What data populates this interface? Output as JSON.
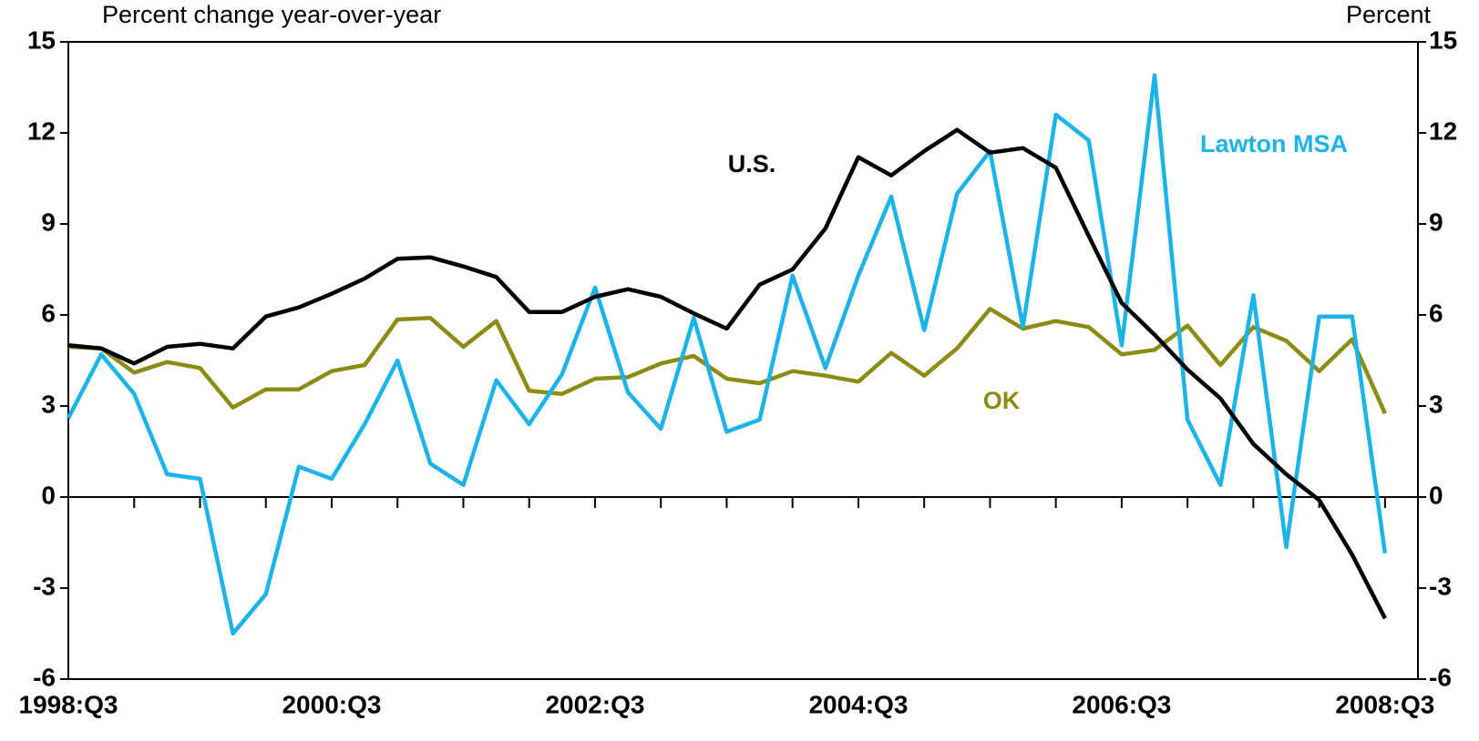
{
  "chart_data": {
    "type": "line",
    "y_label": "Percent change year-over-year",
    "y2_label": "Percent",
    "categories": [
      "1998:Q3",
      null,
      null,
      null,
      null,
      null,
      null,
      null,
      "2000:Q3",
      null,
      null,
      null,
      null,
      null,
      null,
      null,
      "2002:Q3",
      null,
      null,
      null,
      null,
      null,
      null,
      null,
      "2004:Q3",
      null,
      null,
      null,
      null,
      null,
      null,
      null,
      "2006:Q3",
      null,
      null,
      null,
      null,
      null,
      null,
      null,
      "2008:Q3"
    ],
    "series": [
      {
        "name": "U.S.",
        "color": "#000000",
        "values": [
          5.0,
          4.9,
          4.4,
          4.95,
          5.05,
          4.9,
          5.95,
          6.25,
          6.7,
          7.2,
          7.85,
          7.9,
          7.6,
          7.25,
          6.1,
          6.1,
          6.6,
          6.85,
          6.6,
          6.05,
          5.55,
          7.0,
          7.5,
          8.85,
          11.2,
          10.6,
          11.4,
          12.1,
          11.35,
          11.5,
          10.85,
          8.6,
          6.4,
          5.35,
          4.2,
          3.25,
          1.75,
          0.75,
          -0.1,
          -1.9,
          -4.0
        ]
      },
      {
        "name": "Lawton MSA",
        "color": "#1cb4e8",
        "values": [
          2.6,
          4.7,
          3.4,
          0.75,
          0.6,
          -4.5,
          -3.2,
          1.0,
          0.6,
          2.4,
          4.5,
          1.1,
          0.4,
          3.85,
          2.4,
          4.05,
          6.9,
          3.45,
          2.25,
          5.9,
          2.15,
          2.55,
          7.3,
          4.25,
          7.3,
          9.9,
          5.5,
          10.0,
          11.4,
          5.6,
          12.6,
          11.75,
          5.0,
          13.9,
          2.55,
          0.4,
          6.65,
          -1.65,
          5.95,
          5.95,
          -1.85
        ]
      },
      {
        "name": "OK",
        "color": "#8c8c14",
        "values": [
          4.95,
          4.9,
          4.1,
          4.45,
          4.25,
          2.95,
          3.55,
          3.55,
          4.15,
          4.35,
          5.85,
          5.9,
          4.95,
          5.8,
          3.5,
          3.4,
          3.9,
          3.95,
          4.4,
          4.65,
          3.9,
          3.75,
          4.15,
          4.0,
          3.8,
          4.75,
          4.0,
          4.9,
          6.2,
          5.55,
          5.8,
          5.6,
          4.7,
          4.85,
          5.65,
          4.35,
          5.6,
          5.15,
          4.15,
          5.2,
          2.75
        ]
      }
    ],
    "ylim": [
      -6,
      15
    ],
    "yticks": [
      -6,
      -3,
      0,
      3,
      6,
      9,
      12,
      15
    ],
    "y2lim": [
      -6,
      15
    ],
    "y2ticks": [
      -6,
      -3,
      0,
      3,
      6,
      9,
      12,
      15
    ],
    "grid": false
  }
}
